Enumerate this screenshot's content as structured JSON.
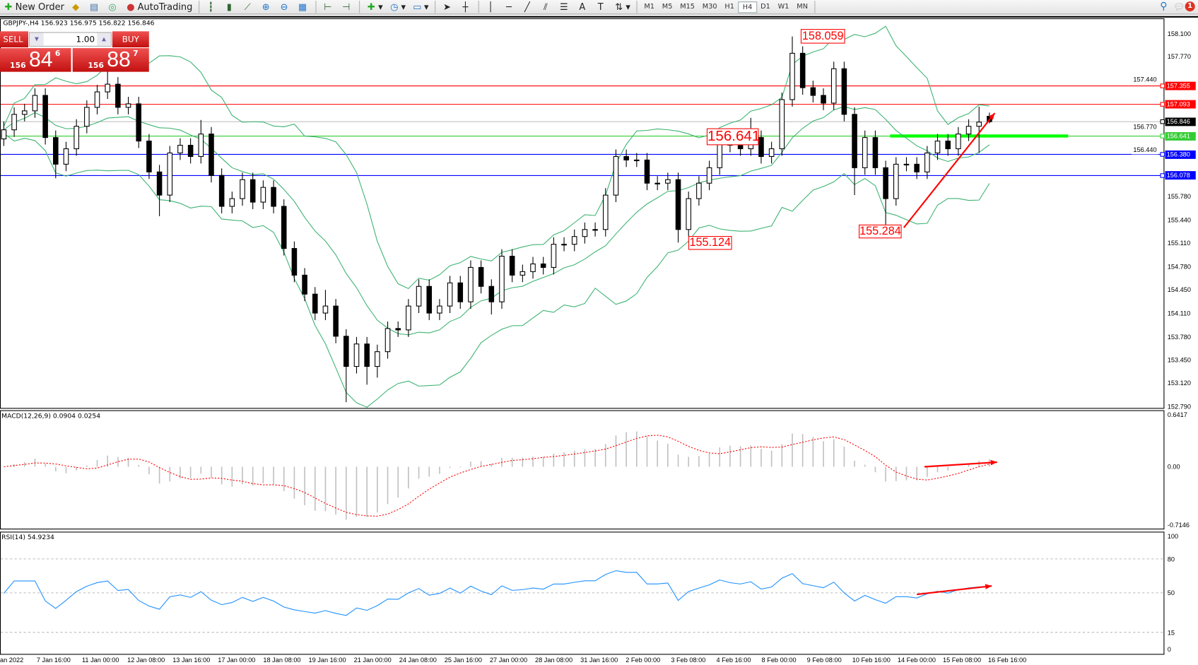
{
  "toolbar": {
    "new_order_label": "New Order",
    "autotrading_label": "AutoTrading",
    "icons": [
      "new-order-icon",
      "market-watch-icon",
      "navigator-icon",
      "signals-icon",
      "autotrading-icon",
      "bar-chart-icon",
      "candlestick-icon",
      "line-chart-icon",
      "zoom-in-icon",
      "zoom-out-icon",
      "tile-windows-icon",
      "chart-shift-icon",
      "autoscroll-icon",
      "indicators-icon",
      "periods-icon",
      "templates-icon",
      "cursor-icon",
      "crosshair-icon",
      "vertical-line-icon",
      "horizontal-line-icon",
      "trendline-icon",
      "fibonacci-icon",
      "channel-icon",
      "text-icon",
      "text-label-icon",
      "arrows-icon",
      "search-icon",
      "chat-icon"
    ],
    "timeframes": [
      "M1",
      "M5",
      "M15",
      "M30",
      "H1",
      "H4",
      "D1",
      "W1",
      "MN"
    ],
    "active_timeframe": "H4",
    "notification_count": "1"
  },
  "chart": {
    "symbol_info": "GBPJPY-,H4  156.923 156.975 156.822 156.846",
    "trade_panel": {
      "sell_label": "SELL",
      "buy_label": "BUY",
      "lot": "1.00",
      "sell_big": "84",
      "sell_prefix": "156",
      "sell_pip": "6",
      "buy_big": "88",
      "buy_prefix": "156",
      "buy_pip": "7"
    },
    "annotations": [
      {
        "text": "158.059"
      },
      {
        "text": "156.641"
      },
      {
        "text": "155.124"
      },
      {
        "text": "155.284"
      }
    ],
    "macd_title": "MACD(12,26,9) 0.0904 0.0254",
    "rsi_title": "RSI(14) 54.9234"
  },
  "colors": {
    "bollinger": "#3cb371",
    "bull": "#ffffff",
    "bear": "#000000",
    "macd_hist": "#c0c0c0",
    "macd_signal": "#ff0000",
    "rsi": "#1e90ff",
    "annotation": "#ff0000"
  },
  "chart_data": {
    "type": "candlestick",
    "symbol": "GBPJPY-",
    "timeframe": "H4",
    "ylim": [
      152.79,
      158.1
    ],
    "y_ticks": [
      "158.100",
      "157.770",
      "157.440",
      "156.770",
      "156.440",
      "155.780",
      "155.440",
      "155.110",
      "154.780",
      "154.450",
      "154.110",
      "153.780",
      "153.450",
      "153.120",
      "152.790"
    ],
    "x_ticks": [
      "an 2022",
      "7 Jan 16:00",
      "11 Jan 00:00",
      "12 Jan 08:00",
      "13 Jan 16:00",
      "17 Jan 00:00",
      "18 Jan 08:00",
      "19 Jan 16:00",
      "21 Jan 00:00",
      "24 Jan 08:00",
      "25 Jan 16:00",
      "27 Jan 00:00",
      "28 Jan 08:00",
      "31 Jan 16:00",
      "2 Feb 00:00",
      "3 Feb 08:00",
      "4 Feb 16:00",
      "8 Feb 00:00",
      "9 Feb 08:00",
      "10 Feb 16:00",
      "14 Feb 00:00",
      "15 Feb 08:00",
      "16 Feb 16:00"
    ],
    "horizontal_lines": [
      {
        "price": "157.355",
        "color": "#ff0000"
      },
      {
        "price": "157.093",
        "color": "#ff0000"
      },
      {
        "price": "156.846",
        "color": "#000000",
        "line": "#c0c0c0"
      },
      {
        "price": "156.641",
        "color": "#32cd32"
      },
      {
        "price": "156.380",
        "color": "#0000ff"
      },
      {
        "price": "156.078",
        "color": "#0000ff"
      }
    ],
    "indicators": [
      "Bollinger Bands",
      "MACD(12,26,9)",
      "RSI(14)"
    ],
    "macd_ticks": [
      "0.6417",
      "0.00",
      "-0.7146"
    ],
    "rsi_ticks": [
      "100",
      "80",
      "50",
      "15",
      "0"
    ],
    "ohlc": [
      [
        156.6,
        156.85,
        156.5,
        156.73
      ],
      [
        156.73,
        157.05,
        156.63,
        156.95
      ],
      [
        156.95,
        157.1,
        156.85,
        157.0
      ],
      [
        157.0,
        157.32,
        156.9,
        157.22
      ],
      [
        157.22,
        157.32,
        156.52,
        156.62
      ],
      [
        156.62,
        156.72,
        156.04,
        156.24
      ],
      [
        156.24,
        156.56,
        156.14,
        156.46
      ],
      [
        156.46,
        156.88,
        156.36,
        156.78
      ],
      [
        156.78,
        157.15,
        156.68,
        157.05
      ],
      [
        157.05,
        157.37,
        156.95,
        157.27
      ],
      [
        157.27,
        157.58,
        157.17,
        157.38
      ],
      [
        157.38,
        157.48,
        156.95,
        157.05
      ],
      [
        157.05,
        157.2,
        156.95,
        157.1
      ],
      [
        157.1,
        157.2,
        156.47,
        156.57
      ],
      [
        156.57,
        156.67,
        156.03,
        156.13
      ],
      [
        156.13,
        156.23,
        155.5,
        155.8
      ],
      [
        155.8,
        156.5,
        155.7,
        156.4
      ],
      [
        156.4,
        156.61,
        156.3,
        156.51
      ],
      [
        156.51,
        156.61,
        156.25,
        156.35
      ],
      [
        156.35,
        156.87,
        156.25,
        156.67
      ],
      [
        156.67,
        156.77,
        155.98,
        156.08
      ],
      [
        156.08,
        156.18,
        155.54,
        155.64
      ],
      [
        155.64,
        155.85,
        155.54,
        155.75
      ],
      [
        155.75,
        156.12,
        155.65,
        156.02
      ],
      [
        156.02,
        156.12,
        155.6,
        155.7
      ],
      [
        155.7,
        156.01,
        155.6,
        155.91
      ],
      [
        155.91,
        156.01,
        155.54,
        155.64
      ],
      [
        155.64,
        155.74,
        154.94,
        155.04
      ],
      [
        155.04,
        155.14,
        154.56,
        154.66
      ],
      [
        154.66,
        154.76,
        154.29,
        154.39
      ],
      [
        154.39,
        154.49,
        154.02,
        154.12
      ],
      [
        154.12,
        154.45,
        154.02,
        154.22
      ],
      [
        154.22,
        154.32,
        153.69,
        153.79
      ],
      [
        153.79,
        153.89,
        152.85,
        153.36
      ],
      [
        153.36,
        153.78,
        153.26,
        153.68
      ],
      [
        153.68,
        153.78,
        153.1,
        153.36
      ],
      [
        153.36,
        153.67,
        153.2,
        153.57
      ],
      [
        153.57,
        154.0,
        153.47,
        153.9
      ],
      [
        153.9,
        154.0,
        153.78,
        153.88
      ],
      [
        153.88,
        154.32,
        153.78,
        154.22
      ],
      [
        154.22,
        154.6,
        154.12,
        154.5
      ],
      [
        154.5,
        154.6,
        154.02,
        154.12
      ],
      [
        154.12,
        154.32,
        154.02,
        154.22
      ],
      [
        154.22,
        154.65,
        154.12,
        154.55
      ],
      [
        154.55,
        154.65,
        154.18,
        154.28
      ],
      [
        154.28,
        154.87,
        154.18,
        154.77
      ],
      [
        154.77,
        154.87,
        154.4,
        154.5
      ],
      [
        154.5,
        154.6,
        154.1,
        154.28
      ],
      [
        154.28,
        155.03,
        154.18,
        154.93
      ],
      [
        154.93,
        155.03,
        154.56,
        154.66
      ],
      [
        154.66,
        154.81,
        154.56,
        154.71
      ],
      [
        154.71,
        154.92,
        154.61,
        154.82
      ],
      [
        154.82,
        154.92,
        154.67,
        154.77
      ],
      [
        154.77,
        155.2,
        154.67,
        155.1
      ],
      [
        155.1,
        155.2,
        155.0,
        155.1
      ],
      [
        155.1,
        155.31,
        155.0,
        155.21
      ],
      [
        155.21,
        155.41,
        155.11,
        155.31
      ],
      [
        155.31,
        155.41,
        155.21,
        155.31
      ],
      [
        155.31,
        155.9,
        155.21,
        155.8
      ],
      [
        155.8,
        156.45,
        155.7,
        156.35
      ],
      [
        156.35,
        156.45,
        156.2,
        156.3
      ],
      [
        156.3,
        156.4,
        156.2,
        156.3
      ],
      [
        156.3,
        156.4,
        155.87,
        155.97
      ],
      [
        155.97,
        156.07,
        155.87,
        155.97
      ],
      [
        155.97,
        156.12,
        155.87,
        156.02
      ],
      [
        156.02,
        156.12,
        155.124,
        155.31
      ],
      [
        155.31,
        155.85,
        155.21,
        155.75
      ],
      [
        155.75,
        156.07,
        155.65,
        155.97
      ],
      [
        155.97,
        156.29,
        155.87,
        156.19
      ],
      [
        156.19,
        156.72,
        156.09,
        156.62
      ],
      [
        156.62,
        156.72,
        156.41,
        156.51
      ],
      [
        156.51,
        156.61,
        156.36,
        156.46
      ],
      [
        156.46,
        156.9,
        156.36,
        156.62
      ],
      [
        156.62,
        156.72,
        156.25,
        156.35
      ],
      [
        156.35,
        156.56,
        156.25,
        156.46
      ],
      [
        156.46,
        157.26,
        156.36,
        157.16
      ],
      [
        157.16,
        158.059,
        157.06,
        157.82
      ],
      [
        157.82,
        157.92,
        157.23,
        157.33
      ],
      [
        157.33,
        157.43,
        157.12,
        157.22
      ],
      [
        157.22,
        157.32,
        157.01,
        157.11
      ],
      [
        157.11,
        157.7,
        157.01,
        157.6
      ],
      [
        157.6,
        157.7,
        156.85,
        156.95
      ],
      [
        156.95,
        157.05,
        155.8,
        156.19
      ],
      [
        156.19,
        156.72,
        156.09,
        156.62
      ],
      [
        156.62,
        156.72,
        156.09,
        156.19
      ],
      [
        156.19,
        156.29,
        155.284,
        155.75
      ],
      [
        155.75,
        156.34,
        155.65,
        156.24
      ],
      [
        156.24,
        156.34,
        156.14,
        156.24
      ],
      [
        156.24,
        156.34,
        156.03,
        156.13
      ],
      [
        156.13,
        156.5,
        156.03,
        156.4
      ],
      [
        156.4,
        156.67,
        156.3,
        156.57
      ],
      [
        156.57,
        156.67,
        156.36,
        156.46
      ],
      [
        156.46,
        156.77,
        156.36,
        156.67
      ],
      [
        156.67,
        156.88,
        156.57,
        156.78
      ],
      [
        156.78,
        157.06,
        156.4,
        156.84
      ],
      [
        156.923,
        156.975,
        156.822,
        156.846
      ]
    ]
  }
}
